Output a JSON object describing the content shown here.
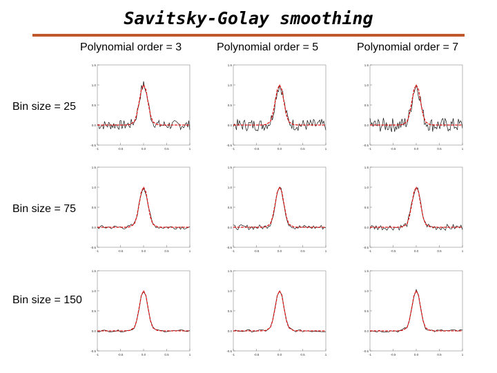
{
  "title": "Savitsky-Golay smoothing",
  "columns": [
    "Polynomial order = 3",
    "Polynomial order = 5",
    "Polynomial order = 7"
  ],
  "rows": [
    "Bin size = 25",
    "Bin size = 75",
    "Bin size = 150"
  ],
  "colors": {
    "rule": "#c0582a",
    "smooth": "#dd1111",
    "raw": "#111111",
    "frame": "#888888"
  },
  "chart_data": {
    "type": "line",
    "layout": "3x3 grid of small multiples",
    "xlim": [
      -1,
      1
    ],
    "ylim": [
      -0.5,
      1.5
    ],
    "xticks": [
      -1,
      -0.5,
      0,
      0.5,
      1
    ],
    "xtick_labels": [
      "-1",
      "-0.5",
      "0.0",
      "0.5",
      "1"
    ],
    "yticks": [
      1.5,
      1.0,
      0.5,
      0.0,
      -0.5
    ],
    "ytick_labels": [
      "1.5",
      "1.0",
      "0.5",
      "0.0",
      "-0.5"
    ],
    "smoothed_series": {
      "name": "smoothed (red dashed)",
      "x": [
        -1,
        -0.8,
        -0.6,
        -0.4,
        -0.3,
        -0.2,
        -0.15,
        -0.1,
        -0.05,
        0,
        0.05,
        0.1,
        0.15,
        0.2,
        0.3,
        0.4,
        0.6,
        0.8,
        1
      ],
      "y": [
        0,
        0,
        0,
        0,
        0.01,
        0.08,
        0.25,
        0.55,
        0.88,
        1.0,
        0.88,
        0.55,
        0.25,
        0.08,
        0.01,
        0,
        0,
        0,
        0
      ]
    },
    "raw_noise_amplitude_by_row": [
      0.12,
      0.05,
      0.025
    ],
    "panels": [
      {
        "row": "Bin size = 25",
        "col": "Polynomial order = 3"
      },
      {
        "row": "Bin size = 25",
        "col": "Polynomial order = 5"
      },
      {
        "row": "Bin size = 25",
        "col": "Polynomial order = 7"
      },
      {
        "row": "Bin size = 75",
        "col": "Polynomial order = 3"
      },
      {
        "row": "Bin size = 75",
        "col": "Polynomial order = 5"
      },
      {
        "row": "Bin size = 75",
        "col": "Polynomial order = 7"
      },
      {
        "row": "Bin size = 150",
        "col": "Polynomial order = 3"
      },
      {
        "row": "Bin size = 150",
        "col": "Polynomial order = 5"
      },
      {
        "row": "Bin size = 150",
        "col": "Polynomial order = 7"
      }
    ]
  }
}
